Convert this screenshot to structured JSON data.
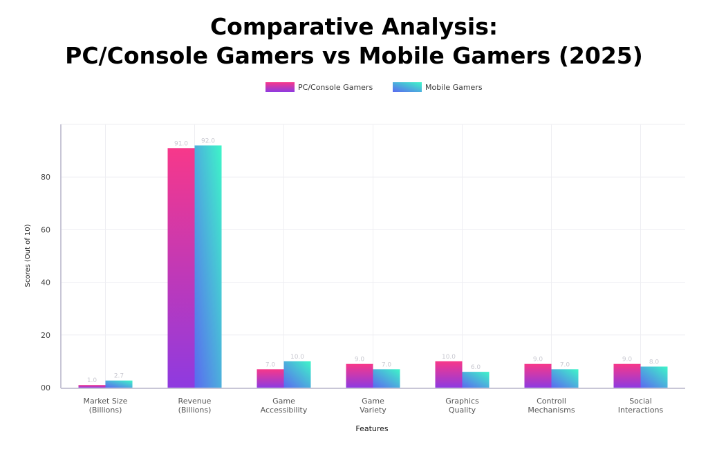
{
  "chart_data": {
    "type": "bar",
    "title": "Comparative Analysis:",
    "subtitle": "PC/Console Gamers vs Mobile Gamers (2025)",
    "xlabel": "Features",
    "ylabel": "Scores (Out of 10)",
    "ylim": [
      0,
      100
    ],
    "yticks": [
      0,
      20,
      40,
      60,
      80
    ],
    "ytick_labels": [
      "00",
      "20",
      "40",
      "60",
      "80"
    ],
    "grid": true,
    "legend": "top-center",
    "categories": [
      [
        "Market Size",
        "(Billions)"
      ],
      [
        "Revenue",
        "(Billions)"
      ],
      [
        "Game",
        "Accessibility"
      ],
      [
        "Game",
        "Variety"
      ],
      [
        "Graphics",
        "Quality"
      ],
      [
        "Controll",
        "Mechanisms"
      ],
      [
        "Social",
        "Interactions"
      ]
    ],
    "series": [
      {
        "name": "PC/Console Gamers",
        "values": [
          1.0,
          91.0,
          7.0,
          9.0,
          10.0,
          9.0,
          9.0
        ],
        "colors": [
          "#f7388a",
          "#8e3ae0"
        ]
      },
      {
        "name": "Mobile Gamers",
        "values": [
          2.7,
          92.0,
          10.0,
          7.0,
          6.0,
          7.0,
          8.0
        ],
        "colors": [
          "#3ef5c8",
          "#5a6af0"
        ]
      }
    ]
  }
}
